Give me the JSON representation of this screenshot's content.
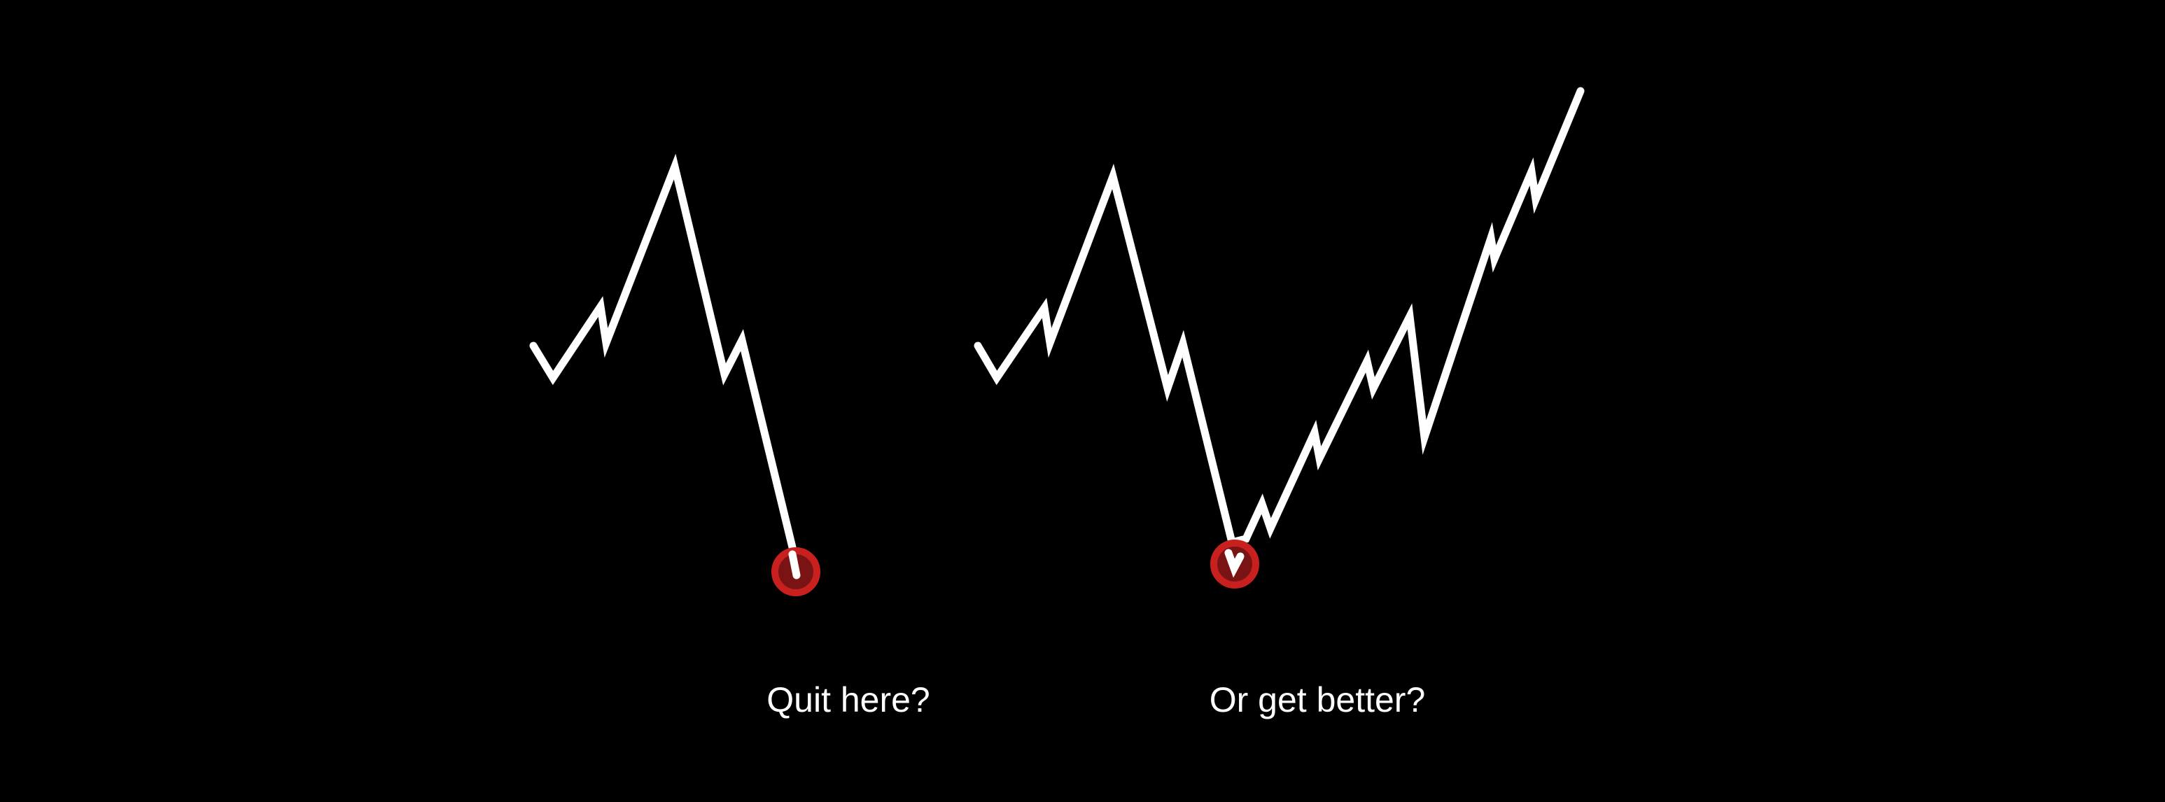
{
  "colors": {
    "background": "#000000",
    "line": "#ffffff",
    "marker": "#c8201f",
    "marker_fill": "#7a1414",
    "caption": "#ffffff"
  },
  "captions": {
    "left": "Quit here?",
    "right": "Or get better?"
  }
}
